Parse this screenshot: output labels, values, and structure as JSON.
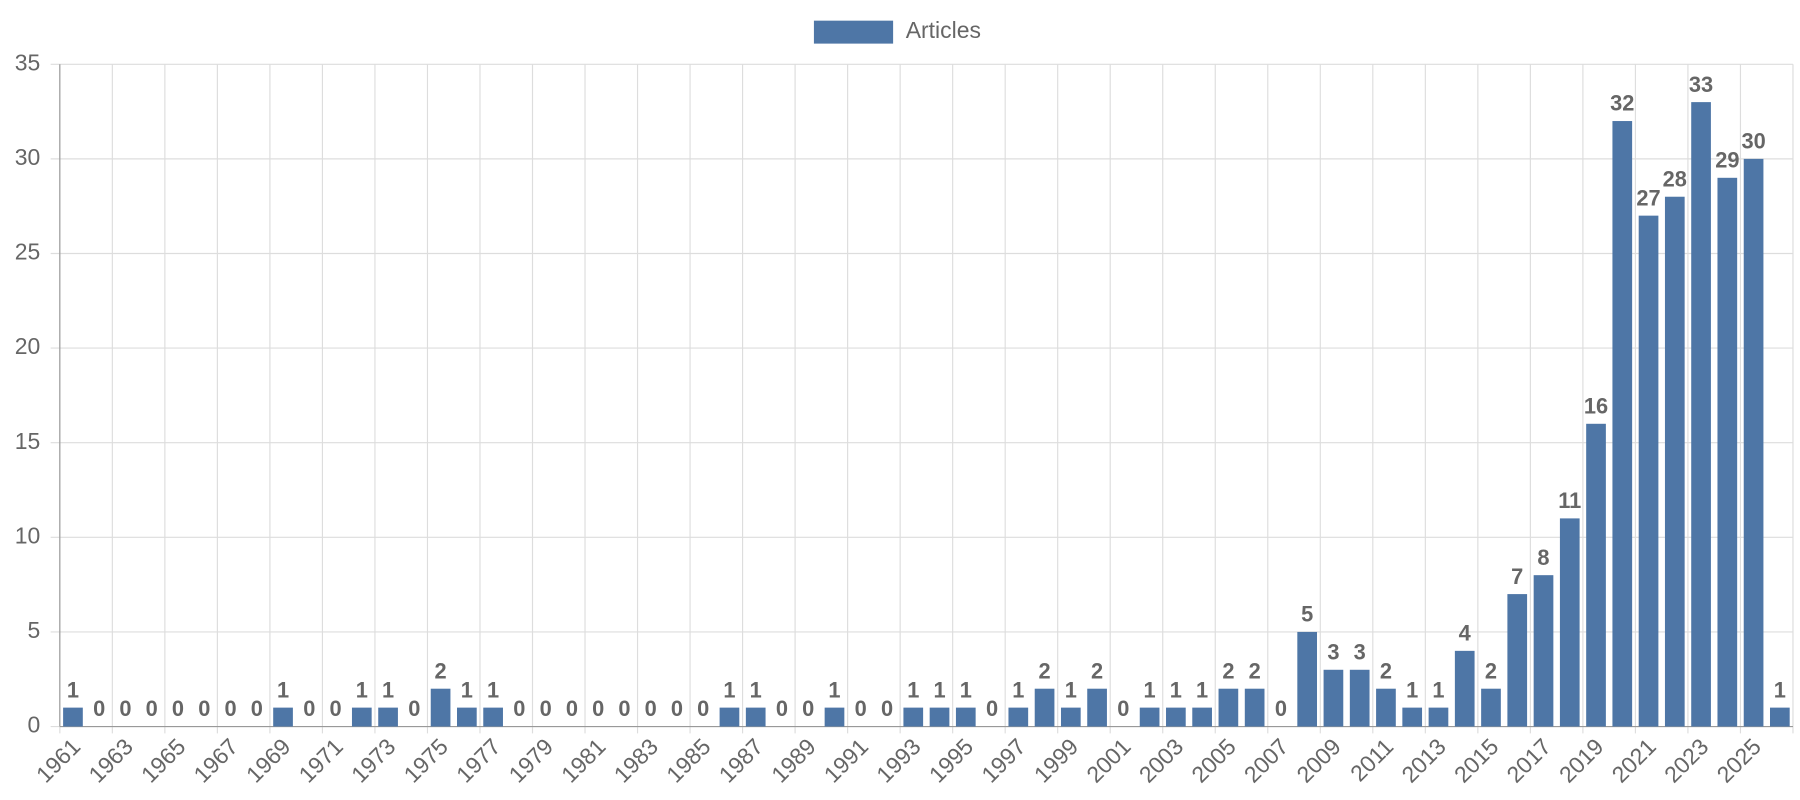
{
  "chart_data": {
    "type": "bar",
    "categories": [
      "1961",
      null,
      "1963",
      null,
      "1965",
      null,
      "1967",
      null,
      "1969",
      null,
      "1971",
      null,
      "1973",
      null,
      "1975",
      null,
      "1977",
      null,
      "1979",
      null,
      "1981",
      null,
      "1983",
      null,
      "1985",
      null,
      "1987",
      null,
      "1989",
      null,
      "1991",
      null,
      "1993",
      null,
      "1995",
      null,
      "1997",
      null,
      "1999",
      null,
      "2001",
      null,
      "2003",
      null,
      "2005",
      null,
      "2007",
      null,
      "2009",
      null,
      "2011",
      null,
      "2013",
      null,
      "2015",
      null,
      "2017",
      null,
      "2019",
      null,
      "2021",
      null,
      "2023",
      null,
      "2025",
      null
    ],
    "series": [
      {
        "name": "Articles",
        "color": "#4e76a6",
        "values": [
          1,
          0,
          0,
          0,
          0,
          0,
          0,
          0,
          1,
          0,
          0,
          1,
          1,
          0,
          2,
          1,
          1,
          0,
          0,
          0,
          0,
          0,
          0,
          0,
          0,
          1,
          1,
          0,
          0,
          1,
          0,
          0,
          1,
          1,
          1,
          0,
          1,
          2,
          1,
          2,
          0,
          1,
          1,
          1,
          2,
          2,
          0,
          5,
          3,
          3,
          2,
          1,
          1,
          4,
          2,
          7,
          8,
          11,
          16,
          32,
          27,
          28,
          33,
          29,
          30,
          1
        ]
      }
    ],
    "ylim": [
      0,
      35
    ],
    "yticks": [
      0,
      5,
      10,
      15,
      20,
      25,
      30,
      35
    ],
    "grid": true,
    "data_labels": true,
    "legend": "top"
  }
}
